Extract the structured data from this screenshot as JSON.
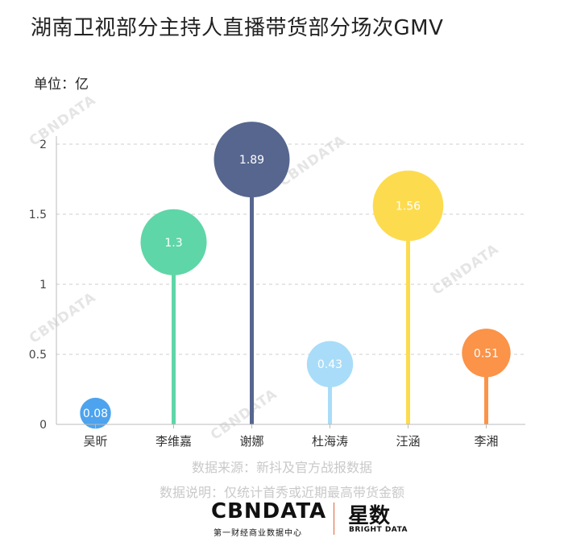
{
  "title": "湖南卫视部分主持人直播带货部分场次GMV",
  "unit": "单位：亿",
  "source": "数据来源：新抖及官方战报数据",
  "note": "数据说明：仅统计首秀或近期最高带货金额",
  "brand": {
    "cbn_logo": "CBNDATA",
    "cbn_sub": "第一财经商业数据中心",
    "xs_logo": "星数",
    "xs_sub": "BRIGHT DATA",
    "watermark": "CBNDATA"
  },
  "chart_data": {
    "type": "lollipop",
    "title": "湖南卫视部分主持人直播带货部分场次GMV",
    "ylabel": "单位：亿",
    "categories": [
      "吴昕",
      "李维嘉",
      "谢娜",
      "杜海涛",
      "汪涵",
      "李湘"
    ],
    "values": [
      0.08,
      1.3,
      1.89,
      0.43,
      1.56,
      0.51
    ],
    "value_labels": [
      "0.08",
      "1.3",
      "1.89",
      "0.43",
      "1.56",
      "0.51"
    ],
    "colors": [
      "#4da3ee",
      "#5fd6a8",
      "#56668f",
      "#a9dcf8",
      "#fddb4f",
      "#fb9348"
    ],
    "ylim": [
      0,
      2
    ],
    "yticks": [
      0,
      0.5,
      1,
      1.5,
      2
    ],
    "ytick_labels": [
      "0",
      "0.5",
      "1",
      "1.5",
      "2"
    ],
    "grid": true
  }
}
